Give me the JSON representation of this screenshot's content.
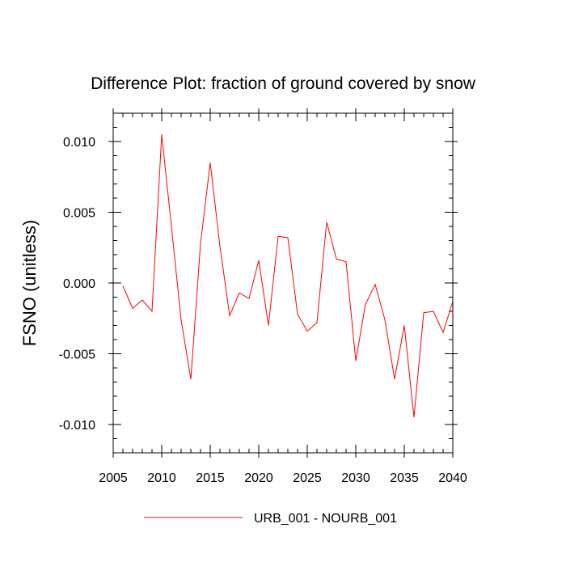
{
  "chart_data": {
    "type": "line",
    "title": "Difference Plot: fraction of ground covered by snow",
    "xlabel": "",
    "ylabel": "FSNO  (unitless)",
    "xlim": [
      2005,
      2040
    ],
    "ylim": [
      -0.012,
      0.012
    ],
    "xticks": [
      2005,
      2010,
      2015,
      2020,
      2025,
      2030,
      2035,
      2040
    ],
    "xtick_labels": [
      "2005",
      "2010",
      "2015",
      "2020",
      "2025",
      "2030",
      "2035",
      "2040"
    ],
    "yticks": [
      -0.01,
      -0.005,
      0.0,
      0.005,
      0.01
    ],
    "ytick_labels": [
      "-0.010",
      "-0.005",
      "0.000",
      "0.005",
      "0.010"
    ],
    "grid": false,
    "legend_position": "bottom-center",
    "series": [
      {
        "name": "URB_001 - NOURB_001",
        "color": "#ff0000",
        "x": [
          2006,
          2007,
          2008,
          2009,
          2010,
          2011,
          2012,
          2013,
          2014,
          2015,
          2016,
          2017,
          2018,
          2019,
          2020,
          2021,
          2022,
          2023,
          2024,
          2025,
          2026,
          2027,
          2028,
          2029,
          2030,
          2031,
          2032,
          2033,
          2034,
          2035,
          2036,
          2037,
          2038,
          2039,
          2040
        ],
        "y": [
          -0.0002,
          -0.0018,
          -0.0012,
          -0.002,
          0.0105,
          0.004,
          -0.0026,
          -0.0068,
          0.0028,
          0.0085,
          0.0026,
          -0.0023,
          -0.0007,
          -0.0011,
          0.0016,
          -0.003,
          0.0033,
          0.0032,
          -0.0022,
          -0.0034,
          -0.0028,
          0.0043,
          0.0017,
          0.0015,
          -0.0055,
          -0.0015,
          -0.0001,
          -0.0026,
          -0.0068,
          -0.003,
          -0.0095,
          -0.0021,
          -0.002,
          -0.0035,
          -0.0013
        ]
      }
    ]
  }
}
